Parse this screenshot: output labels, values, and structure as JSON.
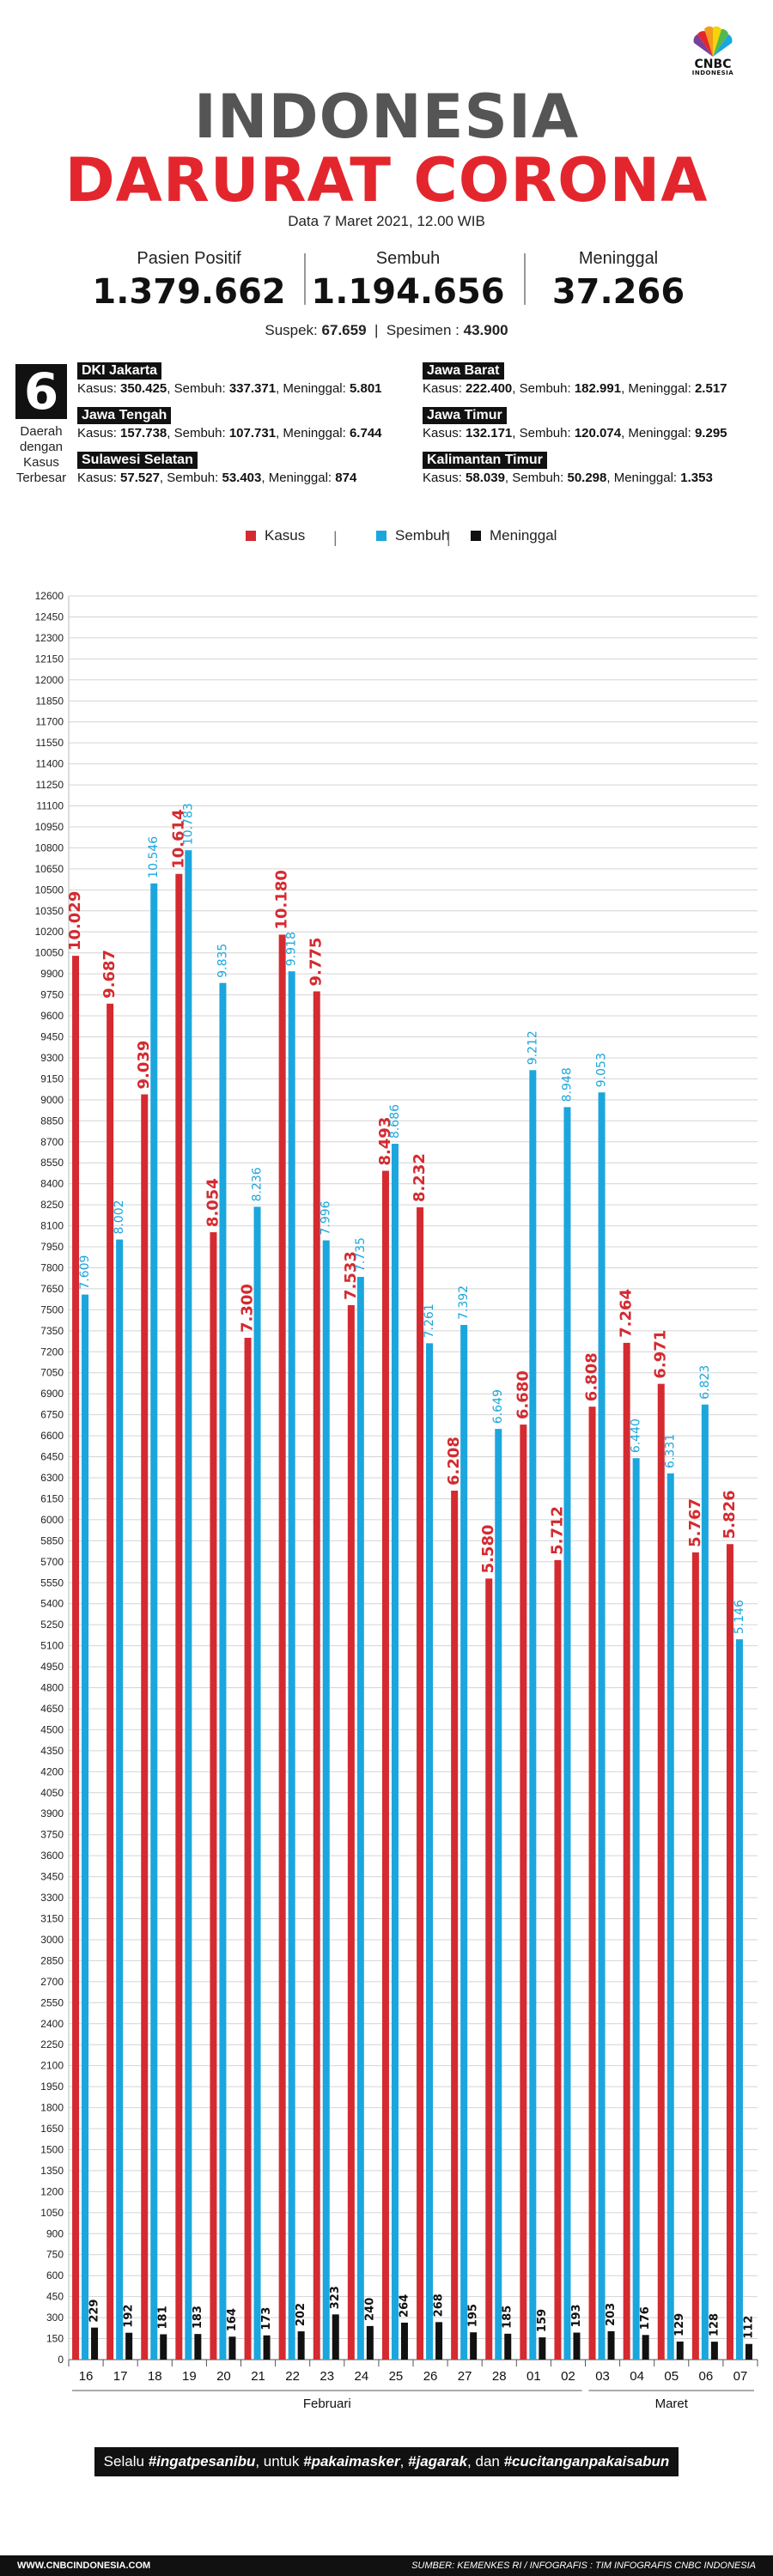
{
  "brand": {
    "logo_text": "CNBC",
    "logo_sub": "INDONESIA"
  },
  "header": {
    "title_line1": "INDONESIA",
    "title_line2": "DARURAT CORONA",
    "date_text": "Data 7 Maret 2021, 12.00 WIB"
  },
  "stats": {
    "positif_label": "Pasien Positif",
    "positif_value": "1.379.662",
    "sembuh_label": "Sembuh",
    "sembuh_value": "1.194.656",
    "meninggal_label": "Meninggal",
    "meninggal_value": "37.266",
    "suspek_label": "Suspek:",
    "suspek_value": "67.659",
    "spesimen_label": "Spesimen :",
    "spesimen_value": "43.900",
    "divider": "|"
  },
  "regions": {
    "count": "6",
    "count_label": "Daerah dengan Kasus Terbesar",
    "kasus_label": "Kasus:",
    "sembuh_label": "Sembuh:",
    "meninggal_label": "Meninggal:",
    "items": [
      {
        "name": "DKI Jakarta",
        "kasus": "350.425",
        "sembuh": "337.371",
        "meninggal": "5.801"
      },
      {
        "name": "Jawa Barat",
        "kasus": "222.400",
        "sembuh": "182.991",
        "meninggal": "2.517"
      },
      {
        "name": "Jawa Tengah",
        "kasus": "157.738",
        "sembuh": "107.731",
        "meninggal": "6.744"
      },
      {
        "name": "Jawa Timur",
        "kasus": "132.171",
        "sembuh": "120.074",
        "meninggal": "9.295"
      },
      {
        "name": "Sulawesi Selatan",
        "kasus": "57.527",
        "sembuh": "53.403",
        "meninggal": "874"
      },
      {
        "name": "Kalimantan Timur",
        "kasus": "58.039",
        "sembuh": "50.298",
        "meninggal": "1.353"
      }
    ]
  },
  "legend": {
    "items": [
      {
        "label": "Kasus",
        "color": "#d42a30"
      },
      {
        "label": "Sembuh",
        "color": "#1ba6dd"
      },
      {
        "label": "Meninggal",
        "color": "#111111"
      }
    ],
    "separator": "|"
  },
  "chart_data": {
    "type": "bar",
    "categories": [
      "16",
      "17",
      "18",
      "19",
      "20",
      "21",
      "22",
      "23",
      "24",
      "25",
      "26",
      "27",
      "28",
      "01",
      "02",
      "03",
      "04",
      "05",
      "06",
      "07"
    ],
    "month_groups": [
      {
        "label": "Februari",
        "from": "16",
        "to": "02"
      },
      {
        "label": "Maret",
        "from": "03",
        "to": "07"
      }
    ],
    "series": [
      {
        "name": "Kasus",
        "color": "#d42a30",
        "values": [
          10029,
          9687,
          9039,
          10614,
          8054,
          7300,
          10180,
          9775,
          7533,
          8493,
          8232,
          6208,
          5580,
          6680,
          5712,
          6808,
          7264,
          6971,
          5767,
          5826
        ],
        "labels": [
          "10.029",
          "9.687",
          "9.039",
          "10.614",
          "8.054",
          "7.300",
          "10.180",
          "9.775",
          "7.533",
          "8.493",
          "8.232",
          "6.208",
          "5.580",
          "6.680",
          "5.712",
          "6.808",
          "7.264",
          "6.971",
          "5.767",
          "5.826"
        ]
      },
      {
        "name": "Sembuh",
        "color": "#1ba6dd",
        "values": [
          7609,
          8002,
          10546,
          10783,
          9835,
          8236,
          9918,
          7996,
          7735,
          8686,
          7261,
          7392,
          6649,
          9212,
          8948,
          9053,
          6440,
          6331,
          6823,
          5146
        ],
        "labels": [
          "7.609",
          "8.002",
          "10.546",
          "10.783",
          "9.835",
          "8.236",
          "9.918",
          "7.996",
          "7.735",
          "8.686",
          "7.261",
          "7.392",
          "6.649",
          "9.212",
          "8.948",
          "9.053",
          "6.440",
          "6.331",
          "6.823",
          "5.146"
        ]
      },
      {
        "name": "Meninggal",
        "color": "#111111",
        "values": [
          229,
          192,
          181,
          183,
          164,
          173,
          202,
          323,
          240,
          264,
          268,
          195,
          185,
          159,
          193,
          203,
          176,
          129,
          128,
          112
        ],
        "labels": [
          "229",
          "192",
          "181",
          "183",
          "164",
          "173",
          "202",
          "323",
          "240",
          "264",
          "268",
          "195",
          "185",
          "159",
          "193",
          "203",
          "176",
          "129",
          "128",
          "112"
        ]
      }
    ],
    "ylim": [
      0,
      12600
    ],
    "y_tick_step": 150,
    "grid": true,
    "legend_position": "top-center",
    "xlabel": "",
    "ylabel": ""
  },
  "footer": {
    "msg_pre": "Selalu ",
    "msg_1": "#ingatpesanibu",
    "msg_mid1": ", untuk ",
    "msg_2": "#pakaimasker",
    "msg_mid2": ", ",
    "msg_3": "#jagarak",
    "msg_mid3": ", dan ",
    "msg_4": "#cucitanganpakaisabun",
    "website": "WWW.CNBCINDONESIA.COM",
    "source": "SUMBER: KEMENKES RI / INFOGRAFIS : TIM INFOGRAFIS CNBC INDONESIA"
  }
}
